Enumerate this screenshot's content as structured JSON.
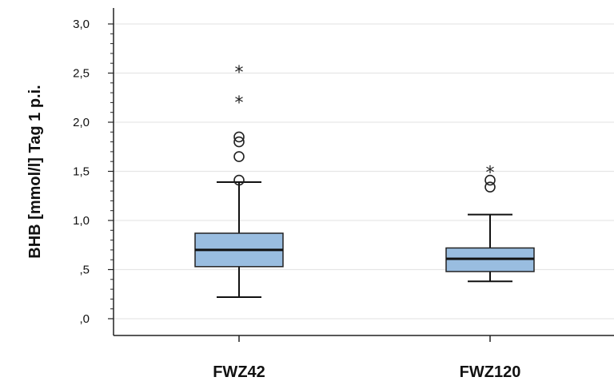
{
  "chart_data": {
    "type": "box",
    "ylabel": "BHB [mmol/l] Tag 1  p.i.",
    "ylim": [
      -0.15,
      3.15
    ],
    "yticks": [
      0.0,
      0.5,
      1.0,
      1.5,
      2.0,
      2.5,
      3.0
    ],
    "ytick_labels": [
      ",0",
      ",5",
      "1,0",
      "1,5",
      "2,0",
      "2,5",
      "3,0"
    ],
    "grid": true,
    "box_color": "#99bde0",
    "categories": [
      "FWZ42",
      "FWZ120"
    ],
    "boxes": [
      {
        "category": "FWZ42",
        "whisker_low": 0.22,
        "q1": 0.53,
        "median": 0.7,
        "q3": 0.87,
        "whisker_high": 1.39,
        "outliers_circle": [
          1.41,
          1.65,
          1.8,
          1.85
        ],
        "outliers_extreme": [
          2.21,
          2.52
        ]
      },
      {
        "category": "FWZ120",
        "whisker_low": 0.38,
        "q1": 0.48,
        "median": 0.61,
        "q3": 0.72,
        "whisker_high": 1.06,
        "outliers_circle": [
          1.34,
          1.41
        ],
        "outliers_extreme": [
          1.5
        ]
      }
    ]
  }
}
